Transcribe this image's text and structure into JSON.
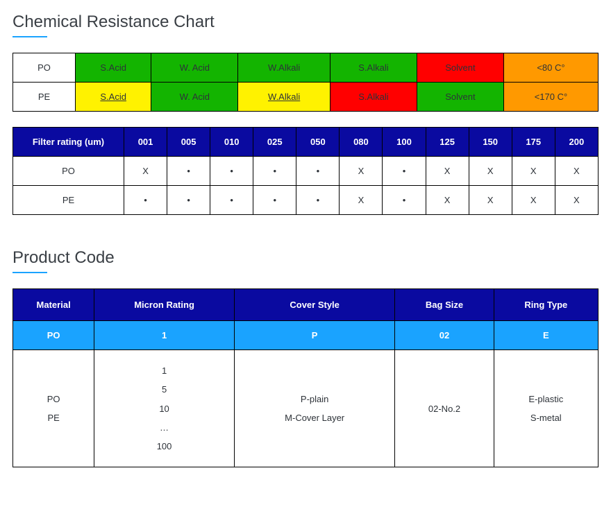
{
  "colors": {
    "header_blue": "#0a0aa0",
    "accent_blue": "#1aa3ff",
    "green": "#13b400",
    "yellow": "#fff200",
    "red": "#ff0000",
    "orange": "#ff9900",
    "border": "#000000",
    "text": "#2d3238",
    "title": "#3a3f45",
    "background": "#ffffff"
  },
  "typography": {
    "title_fontsize": 24,
    "cell_fontsize": 13,
    "font_family": "Segoe UI"
  },
  "section1": {
    "title": "Chemical Resistance Chart",
    "chem_table": {
      "type": "table",
      "rows": [
        {
          "label": "PO",
          "cells": [
            {
              "text": "S.Acid",
              "color": "green",
              "underline": false
            },
            {
              "text": "W. Acid",
              "color": "green",
              "underline": false
            },
            {
              "text": "W.Alkali",
              "color": "green",
              "underline": false
            },
            {
              "text": "S.Alkali",
              "color": "green",
              "underline": false
            },
            {
              "text": "Solvent",
              "color": "red",
              "underline": false
            },
            {
              "text": "<80 C°",
              "color": "orange",
              "underline": false
            }
          ]
        },
        {
          "label": "PE",
          "cells": [
            {
              "text": "S.Acid",
              "color": "yellow",
              "underline": true
            },
            {
              "text": "W. Acid",
              "color": "green",
              "underline": false
            },
            {
              "text": "W.Alkali",
              "color": "yellow",
              "underline": true
            },
            {
              "text": "S.Alkali",
              "color": "red",
              "underline": false
            },
            {
              "text": "Solvent",
              "color": "green",
              "underline": false
            },
            {
              "text": "<170 C°",
              "color": "orange",
              "underline": false
            }
          ]
        }
      ]
    },
    "filter_table": {
      "type": "table",
      "header_label": "Filter rating (um)",
      "columns": [
        "001",
        "005",
        "010",
        "025",
        "050",
        "080",
        "100",
        "125",
        "150",
        "175",
        "200"
      ],
      "rows": [
        {
          "label": "PO",
          "cells": [
            "X",
            "•",
            "•",
            "•",
            "•",
            "X",
            "•",
            "X",
            "X",
            "X",
            "X"
          ]
        },
        {
          "label": "PE",
          "cells": [
            "•",
            "•",
            "•",
            "•",
            "•",
            "X",
            "•",
            "X",
            "X",
            "X",
            "X"
          ]
        }
      ]
    }
  },
  "section2": {
    "title": "Product Code",
    "table": {
      "type": "table",
      "headers": [
        "Material",
        "Micron Rating",
        "Cover Style",
        "Bag Size",
        "Ring Type"
      ],
      "sub": [
        "PO",
        "1",
        "P",
        "02",
        "E"
      ],
      "details": [
        "PO\nPE",
        "1\n5\n10\n…\n100",
        "P-plain\nM-Cover Layer",
        "02-No.2",
        "E-plastic\nS-metal"
      ]
    }
  }
}
